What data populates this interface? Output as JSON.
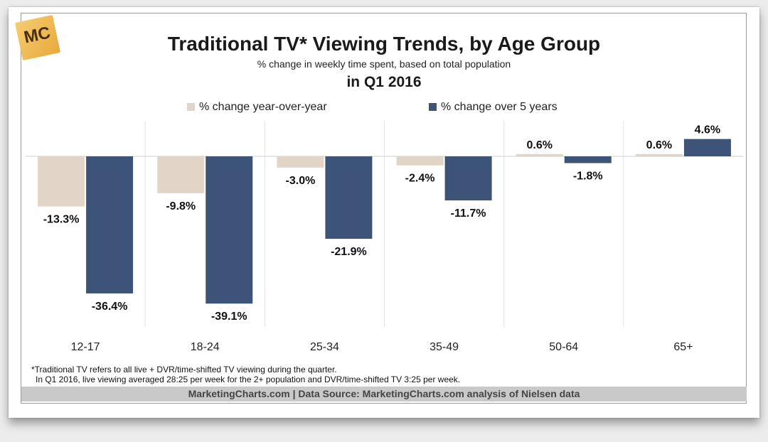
{
  "logo": {
    "text": "MC"
  },
  "chart_data": {
    "type": "bar",
    "title": "Traditional TV* Viewing Trends, by Age Group",
    "subtitle": "% change in weekly time spent, based on total population",
    "period": "in Q1 2016",
    "categories": [
      "12-17",
      "18-24",
      "25-34",
      "35-49",
      "50-64",
      "65+"
    ],
    "series": [
      {
        "name": "% change year-over-year",
        "color": "#e2d5c7",
        "values": [
          -13.3,
          -9.8,
          -3.0,
          -2.4,
          0.6,
          0.6
        ],
        "labels": [
          "-13.3%",
          "-9.8%",
          "-3.0%",
          "-2.4%",
          "0.6%",
          "0.6%"
        ]
      },
      {
        "name": "% change over 5 years",
        "color": "#3d5478",
        "values": [
          -36.4,
          -39.1,
          -21.9,
          -11.7,
          -1.8,
          4.6
        ],
        "labels": [
          "-36.4%",
          "-39.1%",
          "-21.9%",
          "-11.7%",
          "-1.8%",
          "4.6%"
        ]
      }
    ],
    "ylim": [
      -45,
      10
    ],
    "xlabel": "",
    "ylabel": "",
    "legend": "top",
    "grid": false
  },
  "footnotes": {
    "line1": "*Traditional TV refers to all live + DVR/time-shifted TV viewing during the quarter.",
    "line2": "In Q1 2016, live viewing averaged 28:25 per week for the 2+ population and DVR/time-shifted TV 3:25 per week."
  },
  "source": "MarketingCharts.com | Data Source: MarketingCharts.com analysis of Nielsen data"
}
